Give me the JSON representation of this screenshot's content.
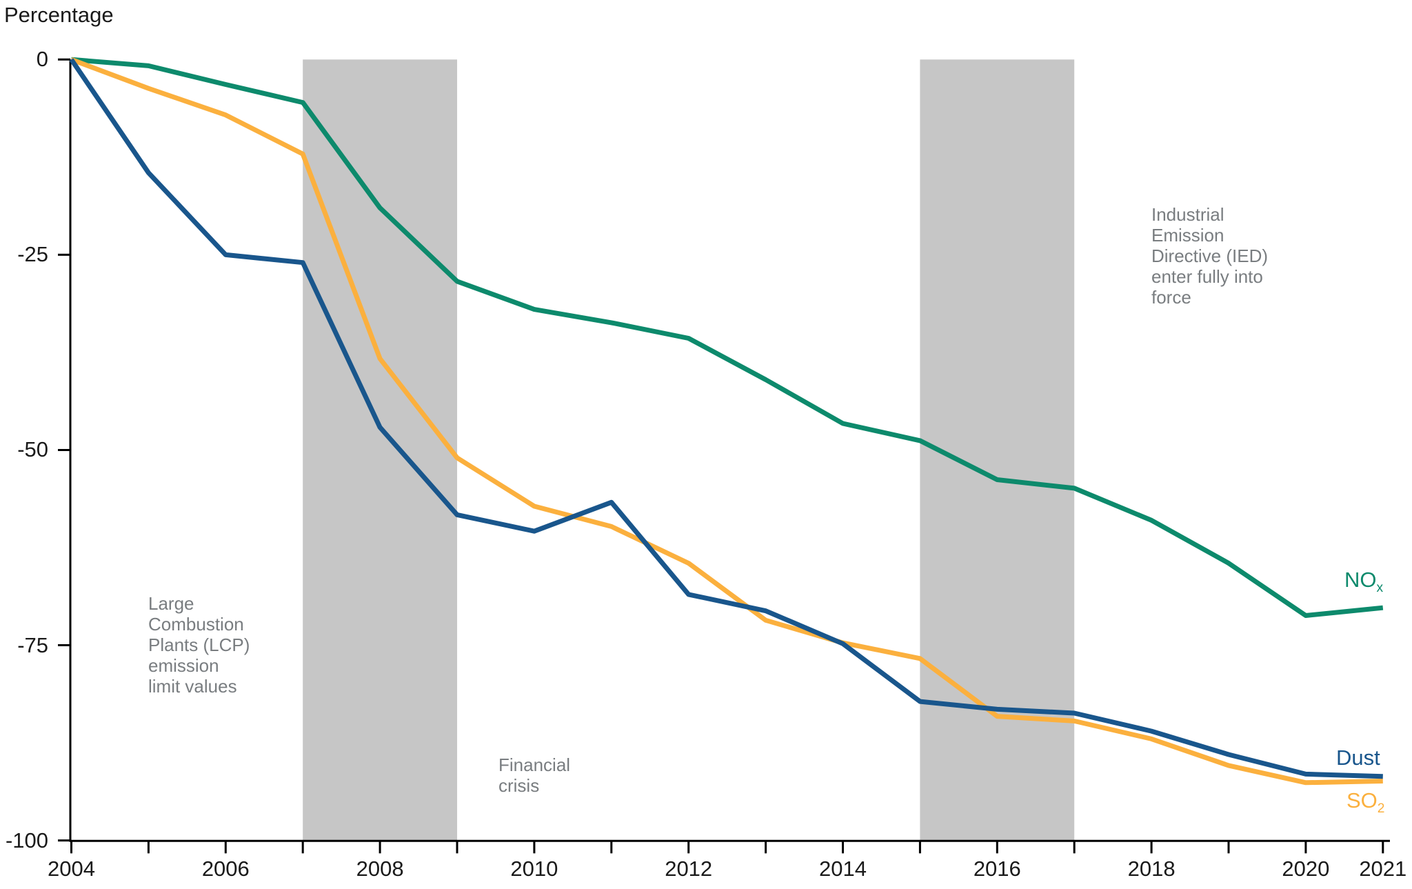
{
  "title": "Percentage",
  "colors": {
    "nox": "#0d8a6c",
    "so2": "#fbb03e",
    "dust": "#19568c",
    "band": "#c6c6c6",
    "annotation": "#797d80",
    "axis_line": "#000000",
    "axis_text": "#1a1a1a"
  },
  "y_axis": {
    "tick_labels": [
      "0",
      "-25",
      "-50",
      "-75",
      "-100"
    ],
    "tick_values": [
      0,
      -25,
      -50,
      -75,
      -100
    ]
  },
  "x_axis": {
    "tick_years": [
      2004,
      2005,
      2006,
      2007,
      2008,
      2009,
      2010,
      2011,
      2012,
      2013,
      2014,
      2015,
      2016,
      2017,
      2018,
      2019,
      2020,
      2021
    ],
    "labeled_years": [
      2004,
      2006,
      2008,
      2010,
      2012,
      2014,
      2016,
      2018,
      2020,
      2021
    ]
  },
  "series_labels": {
    "nox": {
      "main": "NO",
      "sub": "x"
    },
    "dust": {
      "text": "Dust"
    },
    "so2": {
      "main": "SO",
      "sub": "2"
    }
  },
  "annotations": [
    {
      "id": "lcp",
      "lines": [
        "Large",
        "Combustion",
        "Plants (LCP)",
        "emission",
        "limit values"
      ]
    },
    {
      "id": "financial-crisis",
      "lines": [
        "Financial",
        "crisis"
      ]
    },
    {
      "id": "ied",
      "lines": [
        "Industrial",
        "Emission",
        "Directive (IED)",
        "enter fully into",
        "force"
      ]
    }
  ],
  "chart_data": {
    "type": "line",
    "title": "Percentage",
    "xlabel": "",
    "ylabel": "Percentage",
    "x": [
      2004,
      2005,
      2006,
      2007,
      2008,
      2009,
      2010,
      2011,
      2012,
      2013,
      2014,
      2015,
      2016,
      2017,
      2018,
      2019,
      2020,
      2021
    ],
    "ylim": [
      -100,
      0
    ],
    "xlim": [
      2004,
      2021
    ],
    "grid": false,
    "legend_position": "right-end-of-line labels",
    "series": [
      {
        "name": "NOx",
        "color": "#0d8a6c",
        "values": [
          0,
          -0.8,
          -3.2,
          -5.5,
          -19.0,
          -28.4,
          -32.0,
          -33.7,
          -35.7,
          -41.0,
          -46.6,
          -48.8,
          -53.8,
          -54.9,
          -59.0,
          -64.5,
          -71.2,
          -70.2
        ]
      },
      {
        "name": "SO2",
        "color": "#fbb03e",
        "values": [
          0,
          -3.7,
          -7.1,
          -12.1,
          -38.3,
          -51.0,
          -57.2,
          -59.8,
          -64.5,
          -71.8,
          -74.7,
          -76.7,
          -84.1,
          -84.7,
          -87.0,
          -90.4,
          -92.6,
          -92.4
        ]
      },
      {
        "name": "Dust",
        "color": "#19568c",
        "values": [
          0,
          -14.5,
          -25.0,
          -26.0,
          -47.1,
          -58.3,
          -60.4,
          -56.7,
          -68.5,
          -70.6,
          -74.8,
          -82.2,
          -83.2,
          -83.7,
          -86.0,
          -89.0,
          -91.5,
          -91.8
        ]
      }
    ],
    "shaded_regions": [
      {
        "x_from": 2007,
        "x_to": 2009,
        "label": "Financial crisis"
      },
      {
        "x_from": 2015,
        "x_to": 2017,
        "label": "Industrial Emission Directive (IED) enter fully into force"
      }
    ]
  }
}
